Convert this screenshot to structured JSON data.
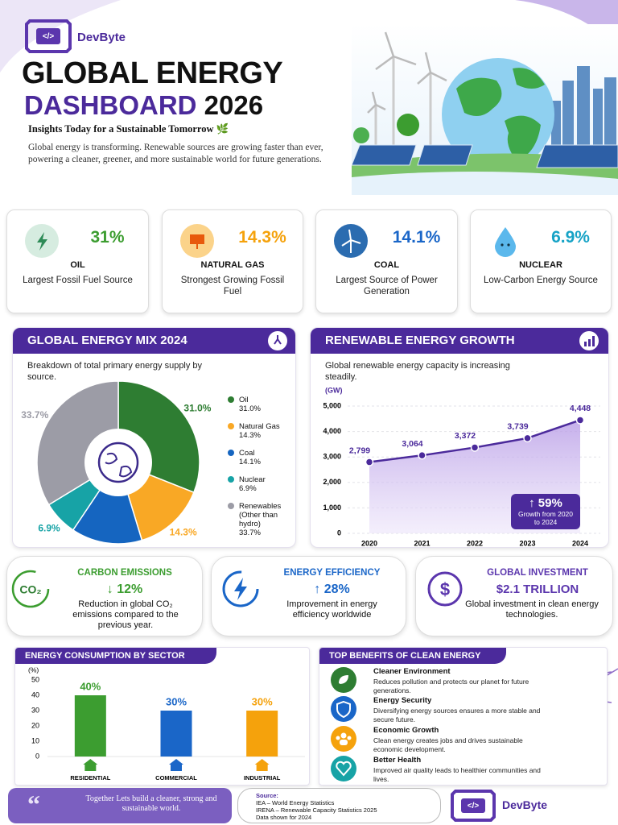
{
  "header": {
    "brand": "DevByte",
    "title_line1": "GLOBAL ENERGY",
    "title_highlight": "DASHBOARD",
    "title_year": "2026",
    "tagline": "Insights Today for a Sustainable Tomorrow 🌿",
    "intro": "Global energy is transforming. Renewable sources are growing faster than ever, powering a cleaner, greener, and more sustainable world for future generations."
  },
  "stat_cards": [
    {
      "value": "31%",
      "label": "OIL",
      "description": "Largest Fossil Fuel Source"
    },
    {
      "value": "14.3%",
      "label": "NATURAL GAS",
      "description": "Strongest Growing Fossil Fuel"
    },
    {
      "value": "14.1%",
      "label": "COAL",
      "description": "Largest Source of Power Generation"
    },
    {
      "value": "6.9%",
      "label": "NUCLEAR",
      "description": "Low-Carbon Energy Source"
    }
  ],
  "chart_data": [
    {
      "type": "pie",
      "title": "GLOBAL ENERGY MIX 2024",
      "subtitle": "Breakdown of total primary energy supply by source.",
      "categories": [
        "Oil",
        "Natural Gas",
        "Coal",
        "Nuclear",
        "Renewables (Other than hydro)"
      ],
      "values": [
        31.0,
        14.3,
        14.1,
        6.9,
        33.7
      ],
      "value_labels": [
        "31.0%",
        "14.3%",
        "14.1%",
        "6.9%",
        "33.7%"
      ],
      "colors": [
        "#2e7d32",
        "#f9a825",
        "#1565c0",
        "#17a3a6",
        "#9c9ca6"
      ]
    },
    {
      "type": "line",
      "title": "RENEWABLE ENERGY GROWTH",
      "subtitle": "Global renewable energy capacity is increasing steadily.",
      "y_label": "(GW)",
      "x": [
        2020,
        2021,
        2022,
        2023,
        2024
      ],
      "xlim": [
        2019.6,
        2024.4
      ],
      "values": [
        2799,
        3064,
        3372,
        3739,
        4448
      ],
      "value_labels": [
        "2,799",
        "3,064",
        "3,372",
        "3,739",
        "4,448"
      ],
      "color": "#4b2a9b",
      "ylim": [
        0,
        5000
      ],
      "yticks": [
        0,
        {
          "value": 1000,
          "label": "1,000"
        },
        {
          "value": 2000,
          "label": "2,000"
        },
        {
          "value": 3000,
          "label": "3,000"
        },
        {
          "value": 4000,
          "label": "4,000"
        },
        {
          "value": 5000,
          "label": "5,000"
        }
      ],
      "grid": true,
      "annotation": {
        "value": "↑ 59%",
        "text": "Growth from 2020 to 2024"
      }
    },
    {
      "type": "bar",
      "title": "ENERGY CONSUMPTION BY SECTOR",
      "y_label": "(%)",
      "categories": [
        "RESIDENTIAL",
        "COMMERCIAL",
        "INDUSTRIAL"
      ],
      "values": [
        40,
        30,
        30
      ],
      "value_labels": [
        "40%",
        "30%",
        "30%"
      ],
      "colors": [
        "#3c9d30",
        "#1a66c8",
        "#f5a20c"
      ],
      "ylim": [
        0,
        50
      ],
      "yticks": [
        0,
        10,
        20,
        30,
        40,
        50
      ],
      "grid": false
    }
  ],
  "highlights": [
    {
      "title": "CARBON EMISSIONS",
      "icon_text": "CO₂",
      "value": "↓ 12%",
      "description": "Reduction in global CO₂ emissions compared to the previous year."
    },
    {
      "title": "ENERGY EFFICIENCY",
      "value": "↑ 28%",
      "description": "Improvement in energy efficiency worldwide"
    },
    {
      "title": "GLOBAL INVESTMENT",
      "value": "$2.1 TRILLION",
      "description": "Global investment in clean energy technologies."
    }
  ],
  "benefits": {
    "title": "TOP BENEFITS OF CLEAN ENERGY",
    "items": [
      {
        "title": "Cleaner Environment",
        "description": "Reduces pollution and protects our planet for future generations."
      },
      {
        "title": "Energy Security",
        "description": "Diversifying energy sources ensures a more stable and secure future."
      },
      {
        "title": "Economic Growth",
        "description": "Clean energy creates jobs and drives sustainable economic development."
      },
      {
        "title": "Better Health",
        "description": "Improved air quality leads to healthier communities and lives."
      }
    ]
  },
  "footer": {
    "quote": "Together Lets build a cleaner, strong and sustainable world.",
    "source_title": "Source:",
    "source_lines": [
      "IEA – World Energy Statistics",
      "IRENA – Renewable Capacity Statistics 2025",
      "Data shown for 2024"
    ],
    "brand": "DevByte"
  }
}
